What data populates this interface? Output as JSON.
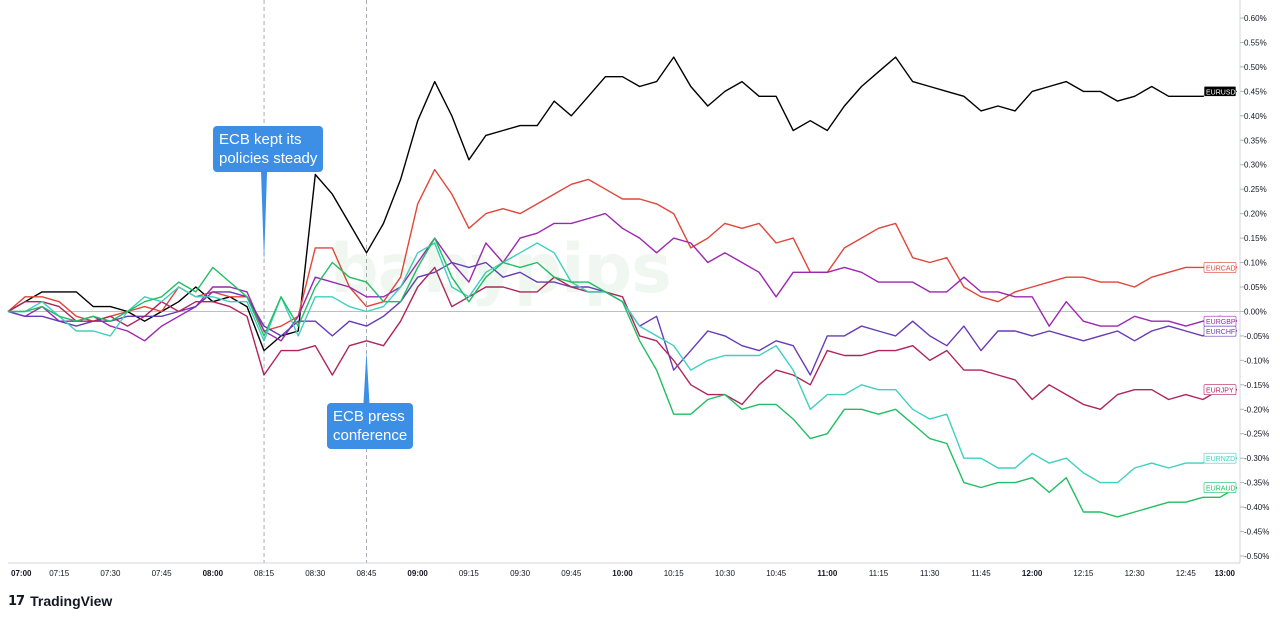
{
  "chart_data": {
    "type": "line",
    "x": [
      "07:00",
      "07:05",
      "07:10",
      "07:15",
      "07:20",
      "07:25",
      "07:30",
      "07:35",
      "07:40",
      "07:45",
      "07:50",
      "07:55",
      "08:00",
      "08:05",
      "08:10",
      "08:15",
      "08:20",
      "08:25",
      "08:30",
      "08:35",
      "08:40",
      "08:45",
      "08:50",
      "08:55",
      "09:00",
      "09:05",
      "09:10",
      "09:15",
      "09:20",
      "09:25",
      "09:30",
      "09:35",
      "09:40",
      "09:45",
      "09:50",
      "09:55",
      "10:00",
      "10:05",
      "10:10",
      "10:15",
      "10:20",
      "10:25",
      "10:30",
      "10:35",
      "10:40",
      "10:45",
      "10:50",
      "10:55",
      "11:00",
      "11:05",
      "11:10",
      "11:15",
      "11:20",
      "11:25",
      "11:30",
      "11:35",
      "11:40",
      "11:45",
      "11:50",
      "11:55",
      "12:00",
      "12:05",
      "12:10",
      "12:15",
      "12:20",
      "12:25",
      "12:30",
      "12:35",
      "12:40",
      "12:45",
      "12:50",
      "12:55",
      "13:00"
    ],
    "x_ticks": [
      "07:00",
      "07:15",
      "07:30",
      "07:45",
      "08:00",
      "08:15",
      "08:30",
      "08:45",
      "09:00",
      "09:15",
      "09:30",
      "09:45",
      "10:00",
      "10:15",
      "10:30",
      "10:45",
      "11:00",
      "11:15",
      "11:30",
      "11:45",
      "12:00",
      "12:15",
      "12:30",
      "12:45",
      "13:00"
    ],
    "x_ticks_bold": [
      "07:00",
      "08:00",
      "09:00",
      "10:00",
      "11:00",
      "12:00",
      "13:00"
    ],
    "y_ticks": [
      "0.60%",
      "0.55%",
      "0.50%",
      "0.45%",
      "0.40%",
      "0.35%",
      "0.30%",
      "0.25%",
      "0.20%",
      "0.15%",
      "0.10%",
      "0.05%",
      "0.00%",
      "-0.05%",
      "-0.10%",
      "-0.15%",
      "-0.20%",
      "-0.25%",
      "-0.30%",
      "-0.35%",
      "-0.40%",
      "-0.45%",
      "-0.50%"
    ],
    "ylim": [
      -0.5,
      0.6
    ],
    "y_unit": "%",
    "grid": false,
    "zero_line": true,
    "vlines": [
      "08:15",
      "08:45"
    ],
    "series": [
      {
        "name": "EURUSD",
        "color": "#000000",
        "label_bg": "#000000",
        "label_fg": "#ffffff",
        "values": [
          0.0,
          0.02,
          0.04,
          0.04,
          0.04,
          0.01,
          0.01,
          0.0,
          -0.02,
          0.0,
          0.02,
          0.05,
          0.02,
          0.03,
          0.01,
          -0.08,
          -0.05,
          -0.04,
          0.28,
          0.24,
          0.18,
          0.12,
          0.18,
          0.27,
          0.39,
          0.47,
          0.4,
          0.31,
          0.36,
          0.37,
          0.38,
          0.38,
          0.43,
          0.4,
          0.44,
          0.48,
          0.48,
          0.46,
          0.47,
          0.52,
          0.46,
          0.42,
          0.45,
          0.47,
          0.44,
          0.44,
          0.37,
          0.39,
          0.37,
          0.42,
          0.46,
          0.49,
          0.52,
          0.47,
          0.46,
          0.45,
          0.44,
          0.41,
          0.42,
          0.41,
          0.45,
          0.46,
          0.47,
          0.45,
          0.45,
          0.43,
          0.44,
          0.46,
          0.44,
          0.44,
          0.44,
          0.45,
          0.45
        ]
      },
      {
        "name": "EURCAD",
        "color": "#e0463a",
        "label_bg": "#ffffff",
        "label_fg": "#e0463a",
        "values": [
          0.0,
          0.03,
          0.03,
          0.02,
          -0.01,
          -0.02,
          -0.01,
          0.0,
          0.01,
          0.0,
          0.05,
          0.03,
          0.04,
          0.03,
          0.03,
          -0.04,
          -0.03,
          -0.01,
          0.13,
          0.13,
          0.05,
          0.01,
          0.02,
          0.07,
          0.22,
          0.29,
          0.24,
          0.17,
          0.2,
          0.21,
          0.2,
          0.22,
          0.24,
          0.26,
          0.27,
          0.25,
          0.23,
          0.23,
          0.22,
          0.2,
          0.13,
          0.15,
          0.18,
          0.17,
          0.18,
          0.14,
          0.15,
          0.08,
          0.08,
          0.13,
          0.15,
          0.17,
          0.18,
          0.11,
          0.1,
          0.11,
          0.05,
          0.03,
          0.02,
          0.04,
          0.05,
          0.06,
          0.07,
          0.07,
          0.06,
          0.06,
          0.05,
          0.07,
          0.08,
          0.09,
          0.09,
          0.1,
          0.09
        ]
      },
      {
        "name": "EURGBP",
        "color": "#9c27b0",
        "label_bg": "#ffffff",
        "label_fg": "#9c27b0",
        "values": [
          0.0,
          -0.01,
          0.01,
          -0.02,
          -0.02,
          -0.01,
          -0.03,
          -0.04,
          -0.06,
          -0.03,
          -0.01,
          0.01,
          0.05,
          0.05,
          0.04,
          -0.04,
          -0.06,
          -0.01,
          0.07,
          0.06,
          0.05,
          0.03,
          0.03,
          0.05,
          0.1,
          0.15,
          0.1,
          0.06,
          0.14,
          0.1,
          0.15,
          0.16,
          0.18,
          0.18,
          0.19,
          0.2,
          0.17,
          0.15,
          0.12,
          0.15,
          0.14,
          0.1,
          0.12,
          0.1,
          0.08,
          0.03,
          0.08,
          0.08,
          0.08,
          0.09,
          0.08,
          0.06,
          0.06,
          0.06,
          0.04,
          0.04,
          0.07,
          0.04,
          0.04,
          0.03,
          0.03,
          -0.03,
          0.02,
          -0.02,
          -0.03,
          -0.03,
          -0.01,
          -0.02,
          -0.02,
          -0.03,
          -0.02,
          -0.01,
          -0.02
        ]
      },
      {
        "name": "EURCHF",
        "color": "#673ab7",
        "label_bg": "#ffffff",
        "label_fg": "#673ab7",
        "values": [
          0.0,
          -0.01,
          -0.01,
          -0.02,
          -0.03,
          -0.02,
          -0.02,
          -0.01,
          -0.01,
          -0.01,
          0.0,
          0.01,
          0.04,
          0.04,
          0.03,
          -0.03,
          -0.05,
          -0.02,
          -0.02,
          -0.05,
          -0.02,
          -0.03,
          -0.01,
          0.02,
          0.07,
          0.08,
          0.1,
          0.09,
          0.1,
          0.07,
          0.08,
          0.06,
          0.06,
          0.05,
          0.05,
          0.04,
          0.02,
          -0.03,
          -0.01,
          -0.12,
          -0.08,
          -0.04,
          -0.05,
          -0.07,
          -0.08,
          -0.06,
          -0.07,
          -0.13,
          -0.05,
          -0.05,
          -0.03,
          -0.04,
          -0.05,
          -0.02,
          -0.05,
          -0.07,
          -0.03,
          -0.08,
          -0.04,
          -0.04,
          -0.05,
          -0.04,
          -0.05,
          -0.06,
          -0.05,
          -0.04,
          -0.06,
          -0.04,
          -0.03,
          -0.04,
          -0.05,
          -0.03,
          -0.04
        ]
      },
      {
        "name": "EURJPY",
        "color": "#b0245c",
        "label_bg": "#ffffff",
        "label_fg": "#b0245c",
        "values": [
          0.0,
          0.02,
          0.02,
          0.01,
          -0.02,
          -0.02,
          -0.01,
          -0.03,
          -0.01,
          0.02,
          0.0,
          0.02,
          0.02,
          0.01,
          -0.01,
          -0.13,
          -0.08,
          -0.08,
          -0.07,
          -0.13,
          -0.07,
          -0.06,
          -0.07,
          -0.02,
          0.05,
          0.09,
          0.01,
          0.03,
          0.05,
          0.05,
          0.04,
          0.04,
          0.07,
          0.05,
          0.04,
          0.04,
          0.03,
          -0.05,
          -0.06,
          -0.1,
          -0.15,
          -0.17,
          -0.17,
          -0.19,
          -0.15,
          -0.12,
          -0.13,
          -0.15,
          -0.08,
          -0.09,
          -0.09,
          -0.08,
          -0.08,
          -0.07,
          -0.1,
          -0.08,
          -0.12,
          -0.12,
          -0.13,
          -0.14,
          -0.18,
          -0.15,
          -0.17,
          -0.19,
          -0.2,
          -0.17,
          -0.16,
          -0.16,
          -0.18,
          -0.17,
          -0.18,
          -0.16,
          -0.16
        ]
      },
      {
        "name": "EURNZD",
        "color": "#3fd0c0",
        "label_bg": "#ffffff",
        "label_fg": "#3fd0c0",
        "values": [
          0.0,
          0.0,
          0.02,
          -0.01,
          -0.04,
          -0.04,
          -0.05,
          0.0,
          0.03,
          0.02,
          0.05,
          0.03,
          0.03,
          0.02,
          0.02,
          -0.06,
          0.03,
          -0.05,
          0.03,
          0.03,
          0.01,
          0.0,
          0.01,
          0.05,
          0.12,
          0.14,
          0.05,
          0.03,
          0.08,
          0.1,
          0.12,
          0.14,
          0.12,
          0.06,
          0.04,
          0.04,
          0.02,
          -0.03,
          -0.05,
          -0.07,
          -0.12,
          -0.1,
          -0.09,
          -0.09,
          -0.09,
          -0.07,
          -0.12,
          -0.2,
          -0.17,
          -0.17,
          -0.15,
          -0.16,
          -0.16,
          -0.2,
          -0.22,
          -0.21,
          -0.3,
          -0.3,
          -0.32,
          -0.32,
          -0.29,
          -0.31,
          -0.3,
          -0.33,
          -0.35,
          -0.35,
          -0.32,
          -0.31,
          -0.32,
          -0.31,
          -0.31,
          -0.3,
          -0.3
        ]
      },
      {
        "name": "EURAUD",
        "color": "#1fbf62",
        "label_bg": "#ffffff",
        "label_fg": "#1fbf62",
        "values": [
          0.0,
          0.0,
          0.01,
          -0.01,
          -0.02,
          -0.01,
          -0.02,
          0.0,
          0.02,
          0.03,
          0.06,
          0.04,
          0.09,
          0.06,
          0.03,
          -0.05,
          0.03,
          -0.03,
          0.05,
          0.1,
          0.07,
          0.06,
          0.02,
          0.02,
          0.09,
          0.15,
          0.07,
          0.02,
          0.07,
          0.1,
          0.09,
          0.1,
          0.07,
          0.06,
          0.06,
          0.04,
          0.02,
          -0.06,
          -0.12,
          -0.21,
          -0.21,
          -0.18,
          -0.17,
          -0.2,
          -0.19,
          -0.19,
          -0.22,
          -0.26,
          -0.25,
          -0.2,
          -0.2,
          -0.21,
          -0.2,
          -0.23,
          -0.26,
          -0.27,
          -0.35,
          -0.36,
          -0.35,
          -0.35,
          -0.34,
          -0.37,
          -0.34,
          -0.41,
          -0.41,
          -0.42,
          -0.41,
          -0.4,
          -0.39,
          -0.39,
          -0.38,
          -0.38,
          -0.36
        ]
      }
    ],
    "annotations": [
      "ECB kept its policies steady",
      "ECB press conference"
    ]
  },
  "callouts": {
    "ecb_policies": "ECB kept its\npolicies steady",
    "ecb_press": "ECB press\nconference"
  },
  "watermark": "babypips",
  "brand": {
    "logo": "17",
    "name": "TradingView"
  }
}
